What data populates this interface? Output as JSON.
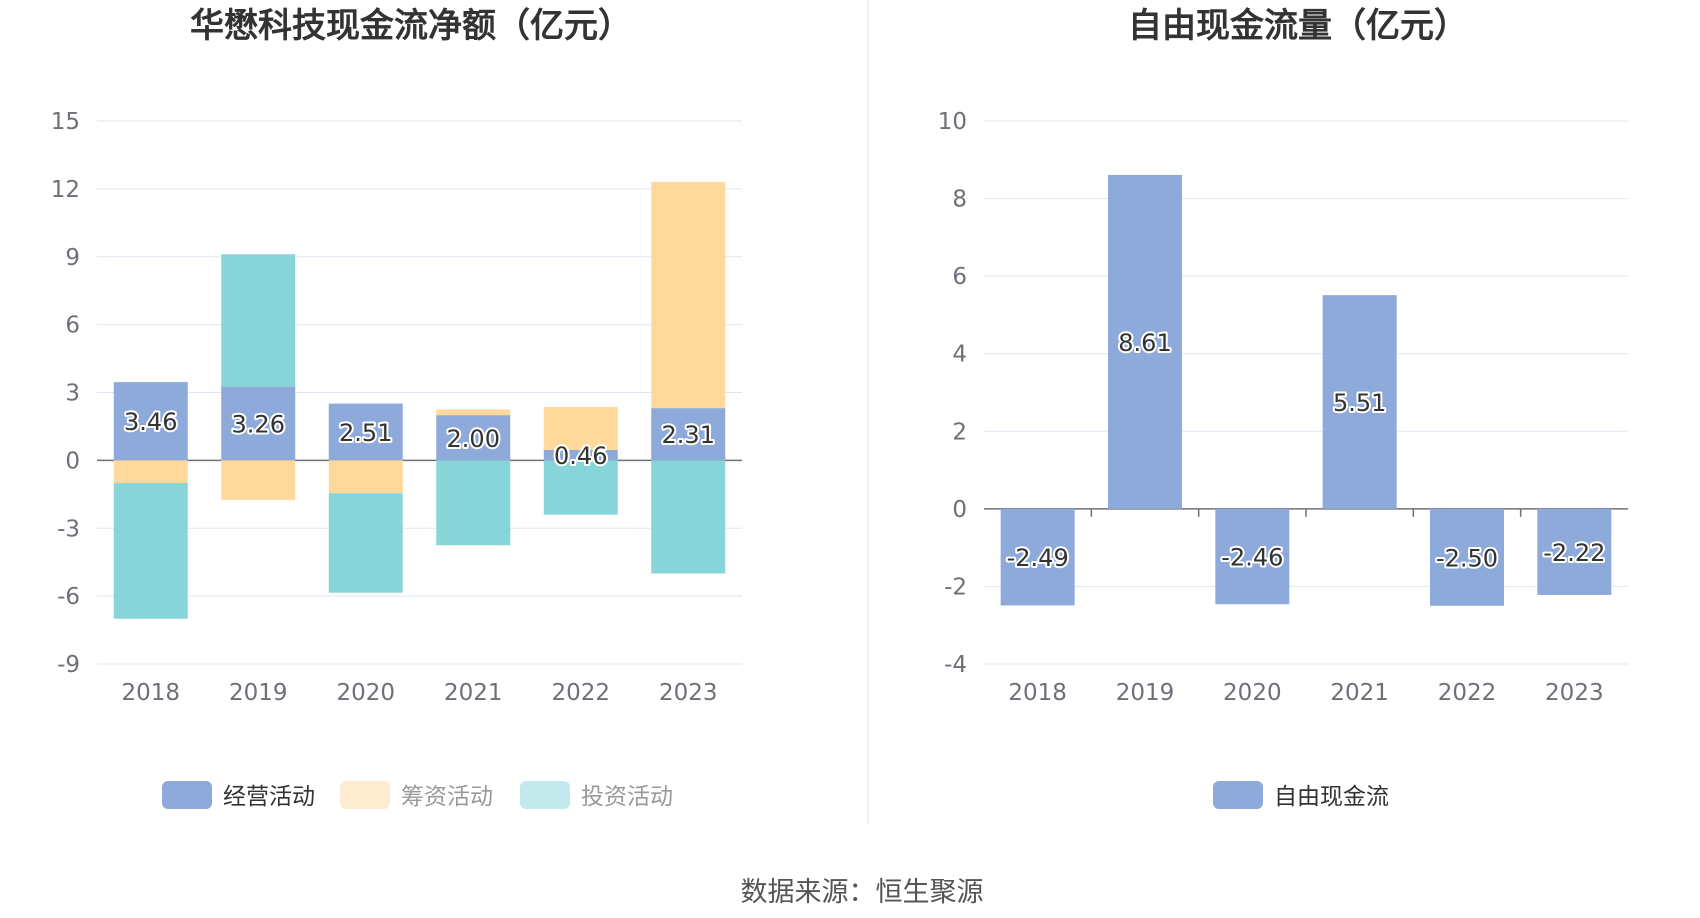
{
  "source": "数据来源：恒生聚源",
  "colors": {
    "operating": "#8eaadb",
    "financing": "#ffd99b",
    "investing": "#88d5d9",
    "investing_legend": "#c2eaec",
    "financing_legend": "#ffecd0",
    "fcf": "#8eaadb"
  },
  "chart_data": [
    {
      "type": "bar",
      "stacked": true,
      "title": "华懋科技现金流净额（亿元）",
      "categories": [
        "2018",
        "2019",
        "2020",
        "2021",
        "2022",
        "2023"
      ],
      "ylim": [
        -9,
        15
      ],
      "yticks": [
        15,
        12,
        9,
        6,
        3,
        0,
        -3,
        -6,
        -9
      ],
      "grid": true,
      "legend_position": "bottom",
      "series": [
        {
          "name": "经营活动",
          "values": [
            3.46,
            3.26,
            2.51,
            2.0,
            0.46,
            2.31
          ],
          "labels": [
            "3.46",
            "3.26",
            "2.51",
            "2.00",
            "0.46",
            "2.31"
          ]
        },
        {
          "name": "筹资活动",
          "values": [
            -1.0,
            -1.75,
            -1.45,
            0.25,
            1.9,
            10.0
          ]
        },
        {
          "name": "投资活动",
          "values": [
            -6.0,
            5.85,
            -4.4,
            -3.75,
            -2.4,
            -5.0
          ]
        }
      ]
    },
    {
      "type": "bar",
      "title": "自由现金流量（亿元）",
      "categories": [
        "2018",
        "2019",
        "2020",
        "2021",
        "2022",
        "2023"
      ],
      "ylim": [
        -4,
        10
      ],
      "yticks": [
        10,
        8,
        6,
        4,
        2,
        0,
        -2,
        -4
      ],
      "grid": true,
      "legend_position": "bottom",
      "series": [
        {
          "name": "自由现金流",
          "values": [
            -2.49,
            8.61,
            -2.46,
            5.51,
            -2.5,
            -2.22
          ],
          "labels": [
            "-2.49",
            "8.61",
            "-2.46",
            "5.51",
            "-2.50",
            "-2.22"
          ]
        }
      ]
    }
  ]
}
